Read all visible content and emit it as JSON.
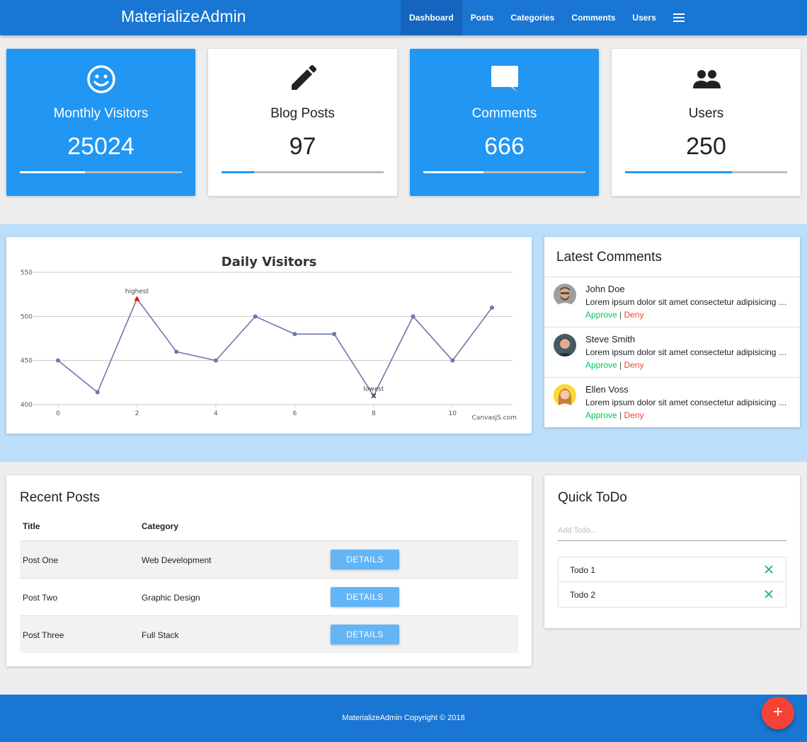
{
  "nav": {
    "brand": "MaterializeAdmin",
    "links": [
      {
        "label": "Dashboard",
        "active": true
      },
      {
        "label": "Posts"
      },
      {
        "label": "Categories"
      },
      {
        "label": "Comments"
      },
      {
        "label": "Users"
      }
    ],
    "menu_icon": "hamburger-menu-icon"
  },
  "stats": [
    {
      "icon": "smiley-icon",
      "label": "Monthly Visitors",
      "value": "25024",
      "progress": 0.4,
      "style": "blue"
    },
    {
      "icon": "pencil-icon",
      "label": "Blog Posts",
      "value": "97",
      "progress": 0.2,
      "style": "white"
    },
    {
      "icon": "comment-icon",
      "label": "Comments",
      "value": "666",
      "progress": 0.37,
      "style": "blue"
    },
    {
      "icon": "users-icon",
      "label": "Users",
      "value": "250",
      "progress": 0.66,
      "style": "white"
    }
  ],
  "chart_data": {
    "type": "line",
    "title": "Daily Visitors",
    "x": [
      0,
      1,
      2,
      3,
      4,
      5,
      6,
      7,
      8,
      9,
      10,
      11
    ],
    "values": [
      450,
      414,
      520,
      460,
      450,
      500,
      480,
      480,
      410,
      500,
      450,
      510
    ],
    "x_ticks": [
      0,
      2,
      4,
      6,
      8,
      10
    ],
    "y_ticks": [
      400,
      450,
      500,
      550
    ],
    "ylim": [
      400,
      550
    ],
    "annotations": [
      {
        "x": 2,
        "label": "highest",
        "marker": "triangle",
        "color": "#ff0000"
      },
      {
        "x": 8,
        "label": "lowest",
        "marker": "cross",
        "color": "#333333"
      }
    ],
    "credit": "CanvasJS.com",
    "line_color": "#6d78ad",
    "grid": true
  },
  "comments": {
    "title": "Latest Comments",
    "items": [
      {
        "name": "John Doe",
        "text": "Lorem ipsum dolor sit amet consectetur adipisicing elit.",
        "approve": "Approve",
        "deny": "Deny",
        "avatar_color": "#8d6e63"
      },
      {
        "name": "Steve Smith",
        "text": "Lorem ipsum dolor sit amet consectetur adipisicing elit.",
        "approve": "Approve",
        "deny": "Deny",
        "avatar_color": "#546e7a"
      },
      {
        "name": "Ellen Voss",
        "text": "Lorem ipsum dolor sit amet consectetur adipisicing elit.",
        "approve": "Approve",
        "deny": "Deny",
        "avatar_color": "#fbc02d"
      }
    ],
    "separator": "|"
  },
  "posts": {
    "title": "Recent Posts",
    "columns": [
      "Title",
      "Category"
    ],
    "rows": [
      {
        "title": "Post One",
        "category": "Web Development",
        "button": "DETAILS"
      },
      {
        "title": "Post Two",
        "category": "Graphic Design",
        "button": "DETAILS"
      },
      {
        "title": "Post Three",
        "category": "Full Stack",
        "button": "DETAILS"
      }
    ]
  },
  "todo": {
    "title": "Quick ToDo",
    "placeholder": "Add Todo...",
    "value": "",
    "items": [
      "Todo 1",
      "Todo 2"
    ],
    "delete_icon": "close-icon",
    "delete_color": "#26a69a"
  },
  "footer": {
    "text": "MaterializeAdmin Copyright © 2018"
  },
  "fab": {
    "label": "+",
    "icon": "add-icon"
  },
  "colors": {
    "primary": "#1976d2",
    "accent": "#2196f3",
    "band": "#bbdefb",
    "fab": "#f44336"
  }
}
